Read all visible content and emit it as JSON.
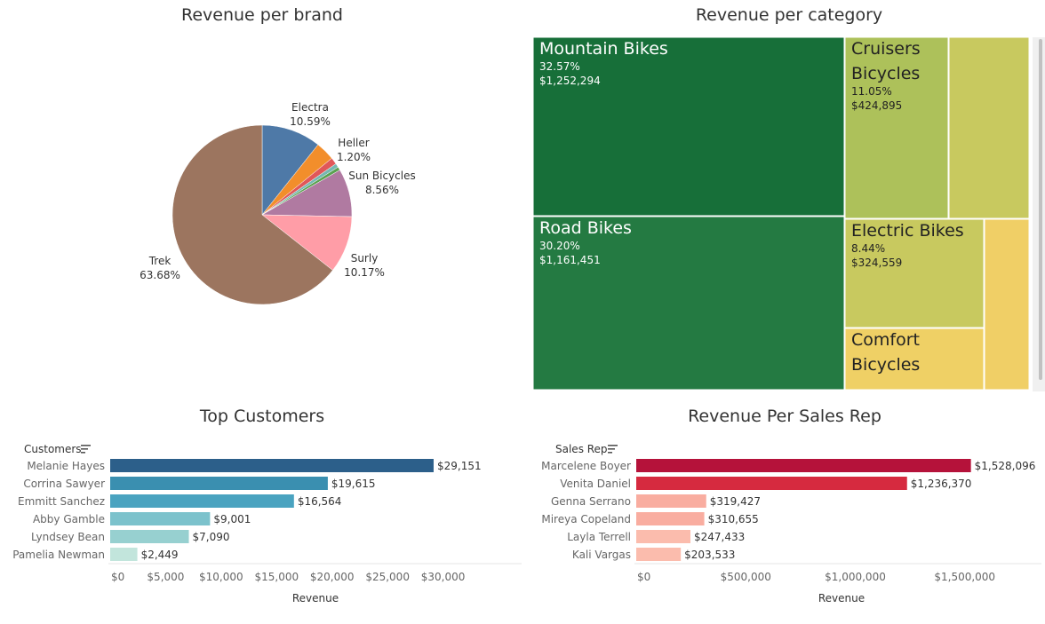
{
  "titles": {
    "brand": "Revenue per brand",
    "category": "Revenue per category",
    "customers": "Top Customers",
    "salesrep": "Revenue Per Sales Rep"
  },
  "chart_data": [
    {
      "type": "pie",
      "title": "Revenue per brand",
      "slices": [
        {
          "label": "Electra",
          "pct": "10.59%",
          "value": 10.59,
          "color": "#4e79a7"
        },
        {
          "label": "",
          "pct": "",
          "value": 3.4,
          "color": "#f28e2b"
        },
        {
          "label": "Heller",
          "pct": "1.20%",
          "value": 1.2,
          "color": "#e15759"
        },
        {
          "label": "",
          "pct": "",
          "value": 0.7,
          "color": "#76b7b2"
        },
        {
          "label": "",
          "pct": "",
          "value": 0.6,
          "color": "#59a14f"
        },
        {
          "label": "Sun Bicycles",
          "pct": "8.56%",
          "value": 8.56,
          "color": "#b07aa1"
        },
        {
          "label": "Surly",
          "pct": "10.17%",
          "value": 10.17,
          "color": "#ff9da7"
        },
        {
          "label": "Trek",
          "pct": "63.68%",
          "value": 63.68,
          "color": "#9c755f"
        }
      ]
    },
    {
      "type": "treemap",
      "title": "Revenue per category",
      "items": [
        {
          "name": "Mountain Bikes",
          "pct": "32.57%",
          "value": "$1,252,294",
          "color": "#176f39",
          "text": "#ffffff"
        },
        {
          "name": "Road Bikes",
          "pct": "30.20%",
          "value": "$1,161,451",
          "color": "#247a42",
          "text": "#ffffff"
        },
        {
          "name": "Cruisers Bicycles",
          "line1": "Cruisers",
          "line2": "Bicycles",
          "pct": "11.05%",
          "value": "$424,895",
          "color": "#adc15a",
          "text": "#222222"
        },
        {
          "name": "",
          "color": "#c8c95f"
        },
        {
          "name": "Electric Bikes",
          "pct": "8.44%",
          "value": "$324,559",
          "color": "#c8c95f",
          "text": "#222222"
        },
        {
          "name": "Comfort Bicycles",
          "line1": "Comfort",
          "line2": "Bicycles",
          "pct": "",
          "value": "",
          "color": "#efd065",
          "text": "#222222"
        },
        {
          "name": "",
          "color": "#f0cf66"
        }
      ]
    },
    {
      "type": "bar",
      "title": "Top Customers",
      "header": "Customers",
      "xlabel": "Revenue",
      "xlim": [
        0,
        35000
      ],
      "ticks": [
        0,
        5000,
        10000,
        15000,
        20000,
        25000,
        30000
      ],
      "tick_labels": [
        "$0",
        "$5,000",
        "$10,000",
        "$15,000",
        "$20,000",
        "$25,000",
        "$30,000"
      ],
      "categories": [
        "Melanie Hayes",
        "Corrina Sawyer",
        "Emmitt Sanchez",
        "Abby Gamble",
        "Lyndsey Bean",
        "Pamelia Newman"
      ],
      "values": [
        29151,
        19615,
        16564,
        9001,
        7090,
        2449
      ],
      "value_labels": [
        "$29,151",
        "$19,615",
        "$16,564",
        "$9,001",
        "$7,090",
        "$2,449"
      ],
      "colors": [
        "#2c5f8a",
        "#3a8fb0",
        "#4aa3c0",
        "#7cc2cc",
        "#97d0d0",
        "#c2e5dc"
      ]
    },
    {
      "type": "bar",
      "title": "Revenue Per Sales Rep",
      "header": "Sales Rep",
      "xlabel": "Revenue",
      "xlim": [
        0,
        1850000
      ],
      "ticks": [
        0,
        500000,
        1000000,
        1500000
      ],
      "tick_labels": [
        "$0",
        "$500,000",
        "$1,000,000",
        "$1,500,000"
      ],
      "categories": [
        "Marcelene Boyer",
        "Venita Daniel",
        "Genna Serrano",
        "Mireya Copeland",
        "Layla Terrell",
        "Kali Vargas"
      ],
      "values": [
        1528096,
        1236370,
        319427,
        310655,
        247433,
        203533
      ],
      "value_labels": [
        "$1,528,096",
        "$1,236,370",
        "$319,427",
        "$310,655",
        "$247,433",
        "$203,533"
      ],
      "colors": [
        "#b5123a",
        "#d62a3f",
        "#f9ada0",
        "#f9ada0",
        "#fbbcad",
        "#fbbcad"
      ]
    }
  ]
}
